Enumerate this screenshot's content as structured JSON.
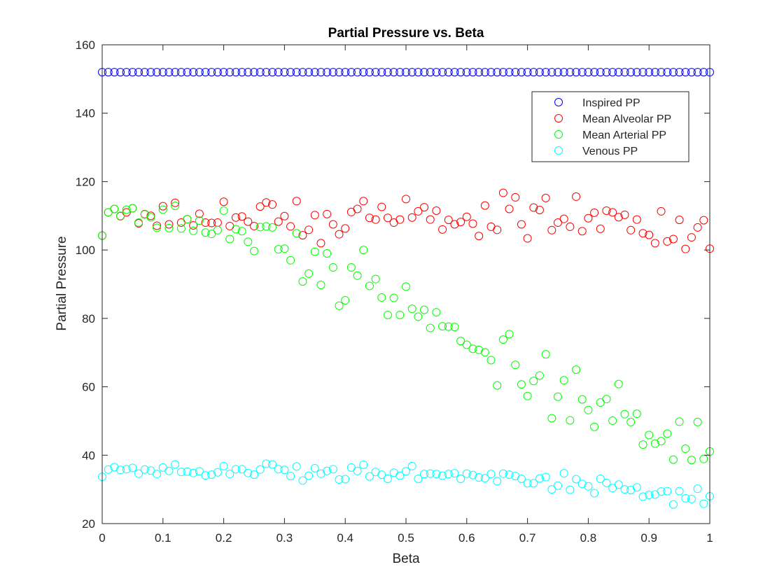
{
  "chart_data": {
    "type": "scatter",
    "title": "Partial Pressure vs. Beta",
    "xlabel": "Beta",
    "ylabel": "Partial Pressure",
    "xlim": [
      0,
      1
    ],
    "ylim": [
      20,
      160
    ],
    "x_ticks": [
      0,
      0.1,
      0.2,
      0.3,
      0.4,
      0.5,
      0.6,
      0.7,
      0.8,
      0.9,
      1
    ],
    "x_tick_labels": [
      "0",
      "0.1",
      "0.2",
      "0.3",
      "0.4",
      "0.5",
      "0.6",
      "0.7",
      "0.8",
      "0.9",
      "1"
    ],
    "y_ticks": [
      20,
      40,
      60,
      80,
      100,
      120,
      140,
      160
    ],
    "y_tick_labels": [
      "20",
      "40",
      "60",
      "80",
      "100",
      "120",
      "140",
      "160"
    ],
    "grid": false,
    "box": true,
    "legend_position": "top-right",
    "x_step": 0.01,
    "series": [
      {
        "name": "Inspired PP",
        "color": "#0000ff",
        "marker": "circle-open",
        "values": [
          152,
          152,
          152,
          152,
          152,
          152,
          152,
          152,
          152,
          152,
          152,
          152,
          152,
          152,
          152,
          152,
          152,
          152,
          152,
          152,
          152,
          152,
          152,
          152,
          152,
          152,
          152,
          152,
          152,
          152,
          152,
          152,
          152,
          152,
          152,
          152,
          152,
          152,
          152,
          152,
          152,
          152,
          152,
          152,
          152,
          152,
          152,
          152,
          152,
          152,
          152,
          152,
          152,
          152,
          152,
          152,
          152,
          152,
          152,
          152,
          152,
          152,
          152,
          152,
          152,
          152,
          152,
          152,
          152,
          152,
          152,
          152,
          152,
          152,
          152,
          152,
          152,
          152,
          152,
          152,
          152,
          152,
          152,
          152,
          152,
          152,
          152,
          152,
          152,
          152,
          152,
          152,
          152,
          152,
          152,
          152,
          152,
          152,
          152,
          152,
          152
        ]
      },
      {
        "name": "Mean Alveolar PP",
        "color": "#ff0000",
        "marker": "circle-open",
        "values": [
          104.2,
          111,
          112,
          109.9,
          111,
          112.2,
          107.8,
          110.5,
          110,
          107.1,
          112.8,
          107.5,
          113.8,
          108,
          109,
          107.2,
          110.6,
          108,
          107.9,
          108,
          114.1,
          107,
          109.5,
          109.8,
          108.3,
          107,
          112.7,
          113.9,
          113.3,
          108.3,
          109.9,
          106.9,
          114.3,
          104.3,
          105.9,
          110.2,
          102,
          110.5,
          107.5,
          104.6,
          106.3,
          111.1,
          112,
          114.3,
          109.4,
          108.9,
          112.6,
          109.4,
          108,
          108.9,
          114.9,
          109.5,
          111.3,
          112.5,
          108.9,
          111.5,
          106,
          108.8,
          107.5,
          108.2,
          109.7,
          107.7,
          104.1,
          113,
          106.8,
          105.9,
          116.7,
          112,
          115.4,
          107.5,
          103.4,
          112.4,
          111.7,
          115.2,
          105.8,
          108,
          109.1,
          106.8,
          115.6,
          105.5,
          109.3,
          110.9,
          106.2,
          111.5,
          111,
          109.6,
          110.3,
          105.8,
          108.9,
          104.9,
          104.4,
          102,
          111.3,
          102.5,
          103.2,
          108.8,
          100.3,
          103.7,
          106.6,
          108.7,
          100.4
        ]
      },
      {
        "name": "Mean Arterial PP",
        "color": "#00ff00",
        "marker": "circle-open",
        "values": [
          104.2,
          111,
          112,
          110,
          111.8,
          112.2,
          108,
          110.4,
          109.6,
          106.5,
          111.8,
          106.4,
          112.9,
          106.3,
          109,
          105.6,
          108.6,
          105.1,
          104.7,
          105.8,
          111.5,
          103.2,
          106.1,
          105.5,
          102.4,
          99.7,
          106.7,
          106.9,
          106.6,
          100.2,
          100.4,
          97,
          104.9,
          90.8,
          93.1,
          99.5,
          89.8,
          99,
          94.9,
          83.7,
          85.3,
          94.9,
          92.5,
          100,
          89.5,
          91.5,
          86.1,
          81,
          86,
          81,
          89.3,
          82.8,
          80.5,
          82.5,
          77.2,
          81.8,
          77.7,
          77.6,
          77.5,
          73.4,
          72.3,
          71.1,
          70.8,
          70.1,
          67.8,
          60.4,
          73.8,
          75.4,
          66.4,
          60.7,
          57.3,
          61.7,
          63.3,
          69.5,
          50.8,
          57.1,
          61.9,
          50.2,
          65,
          56.3,
          53.2,
          48.3,
          55.4,
          56.4,
          50.1,
          60.8,
          52,
          49.7,
          52.1,
          43.1,
          45.9,
          43.4,
          44.1,
          46.3,
          38.7,
          49.8,
          41.9,
          38.6,
          49.7,
          38.9,
          41.1
        ]
      },
      {
        "name": "Venous PP",
        "color": "#00ffff",
        "marker": "circle-open",
        "values": [
          33.7,
          35.8,
          36.5,
          35.7,
          35.9,
          36.3,
          34.6,
          35.8,
          35.5,
          34.5,
          36.4,
          35.4,
          37.3,
          35.1,
          35.2,
          34.8,
          35.3,
          34.1,
          34.3,
          35,
          36.8,
          34.5,
          35.9,
          35.9,
          34.8,
          34.3,
          35.8,
          37.5,
          37.3,
          35.9,
          35.7,
          33.9,
          36.7,
          32.6,
          34,
          36.2,
          34.6,
          35.4,
          35.9,
          32.9,
          33,
          36.4,
          35.4,
          37.2,
          33.8,
          35.1,
          34.3,
          33.1,
          34.9,
          34,
          35.3,
          36.8,
          33.1,
          34.5,
          34.6,
          34.5,
          34,
          34.5,
          34.7,
          33.1,
          34.6,
          34.2,
          33.5,
          33.3,
          34.5,
          32.4,
          34.6,
          34.3,
          33.9,
          33.1,
          31.8,
          31.8,
          33.2,
          33.6,
          30,
          31.1,
          34.7,
          29.9,
          33,
          31.6,
          30.9,
          28.9,
          33.1,
          31.9,
          30.4,
          31.4,
          30,
          29.8,
          30.6,
          27.9,
          28.4,
          28.5,
          29.4,
          29.5,
          25.6,
          29.5,
          27.4,
          27.2,
          30.2,
          25.8,
          28
        ]
      }
    ]
  }
}
